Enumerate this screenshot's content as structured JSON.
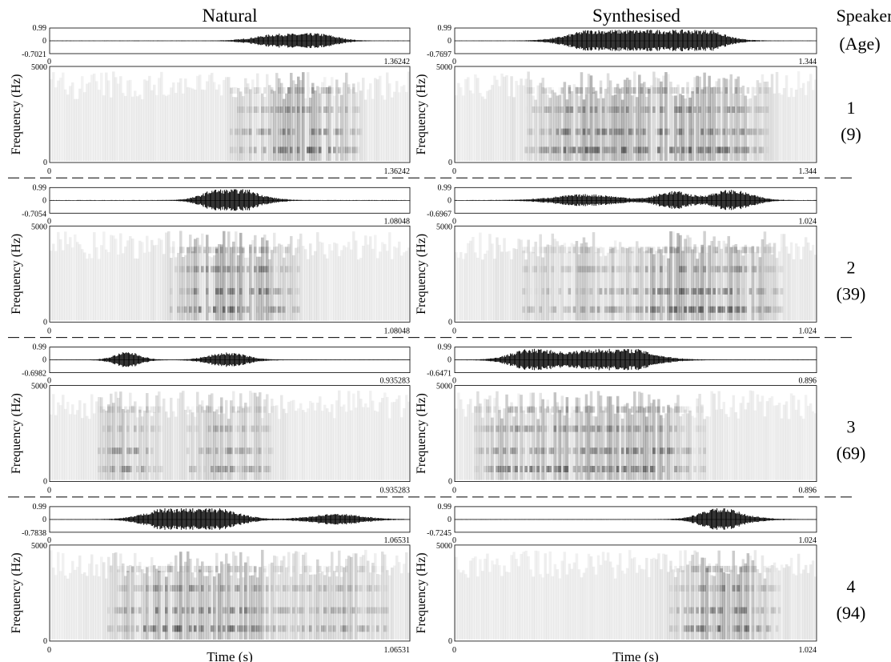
{
  "headers": {
    "natural": "Natural",
    "synthesised": "Synthesised",
    "speaker": "Speaker",
    "age": "(Age)"
  },
  "x_axis_label": "Time (s)",
  "y_axis_label": "Frequency (Hz)",
  "rows": [
    {
      "speaker": "1",
      "age": "(9)",
      "panels": [
        {
          "wave_max": "0.99",
          "wave_zero": "0",
          "wave_min": "-0.7021",
          "time_start": "0",
          "duration": "1.36242",
          "freq_max": "5000",
          "freq_min": "0"
        },
        {
          "wave_max": "0.99",
          "wave_zero": "0",
          "wave_min": "-0.7697",
          "time_start": "0",
          "duration": "1.344",
          "freq_max": "5000",
          "freq_min": "0"
        }
      ]
    },
    {
      "speaker": "2",
      "age": "(39)",
      "panels": [
        {
          "wave_max": "0.99",
          "wave_zero": "0",
          "wave_min": "-0.7054",
          "time_start": "0",
          "duration": "1.08048",
          "freq_max": "5000",
          "freq_min": "0"
        },
        {
          "wave_max": "0.99",
          "wave_zero": "0",
          "wave_min": "-0.6967",
          "time_start": "0",
          "duration": "1.024",
          "freq_max": "5000",
          "freq_min": "0"
        }
      ]
    },
    {
      "speaker": "3",
      "age": "(69)",
      "panels": [
        {
          "wave_max": "0.99",
          "wave_zero": "0",
          "wave_min": "-0.6982",
          "time_start": "0",
          "duration": "0.935283",
          "freq_max": "5000",
          "freq_min": "0"
        },
        {
          "wave_max": "0.99",
          "wave_zero": "0",
          "wave_min": "-0.6471",
          "time_start": "0",
          "duration": "0.896",
          "freq_max": "5000",
          "freq_min": "0"
        }
      ]
    },
    {
      "speaker": "4",
      "age": "(94)",
      "panels": [
        {
          "wave_max": "0.99",
          "wave_zero": "0",
          "wave_min": "-0.7838",
          "time_start": "0",
          "duration": "1.06531",
          "freq_max": "5000",
          "freq_min": "0"
        },
        {
          "wave_max": "0.99",
          "wave_zero": "0",
          "wave_min": "-0.7245",
          "time_start": "0",
          "duration": "1.024",
          "freq_max": "5000",
          "freq_min": "0"
        }
      ]
    }
  ]
}
